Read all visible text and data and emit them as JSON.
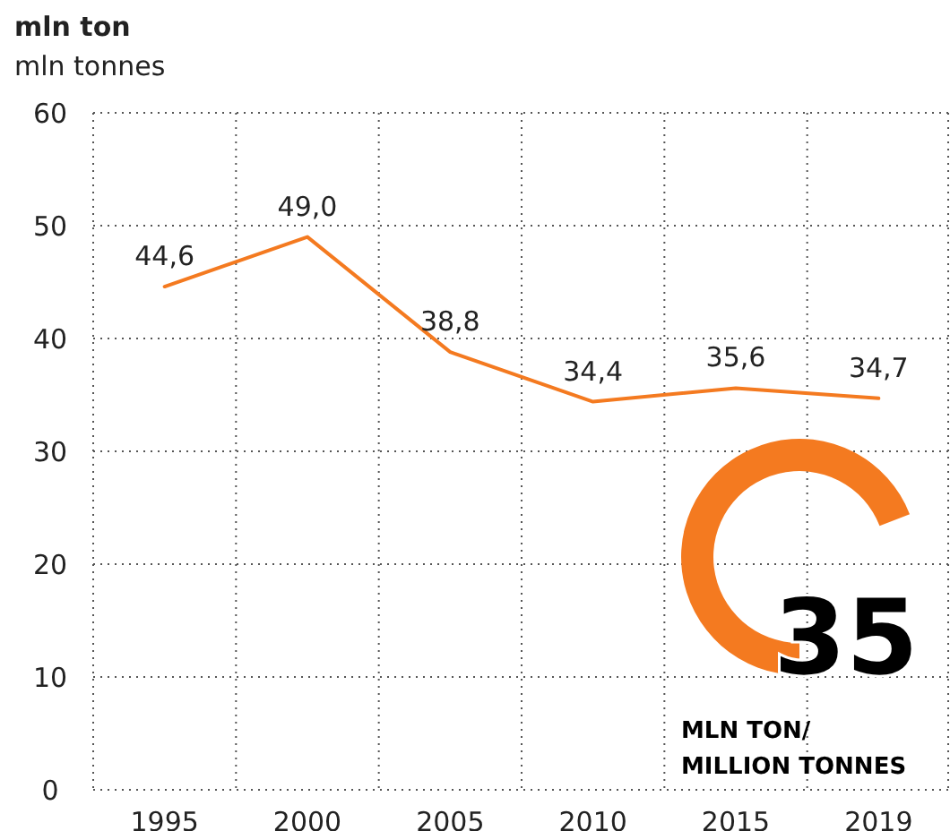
{
  "chart_data": {
    "type": "line",
    "title": "mln ton",
    "subtitle": "mln tonnes",
    "categories": [
      "1995",
      "2000",
      "2005",
      "2010",
      "2015",
      "2019"
    ],
    "values": [
      44.6,
      49.0,
      38.8,
      34.4,
      35.6,
      34.7
    ],
    "value_labels": [
      "44,6",
      "49,0",
      "38,8",
      "34,4",
      "35,6",
      "34,7"
    ],
    "color": "#f47a20",
    "ylim": [
      0,
      60
    ],
    "yticks": [
      0,
      10,
      20,
      30,
      40,
      50,
      60
    ],
    "grid": true,
    "annotations": [
      "35",
      "MLN TON/",
      "MILLION TONNES"
    ]
  }
}
